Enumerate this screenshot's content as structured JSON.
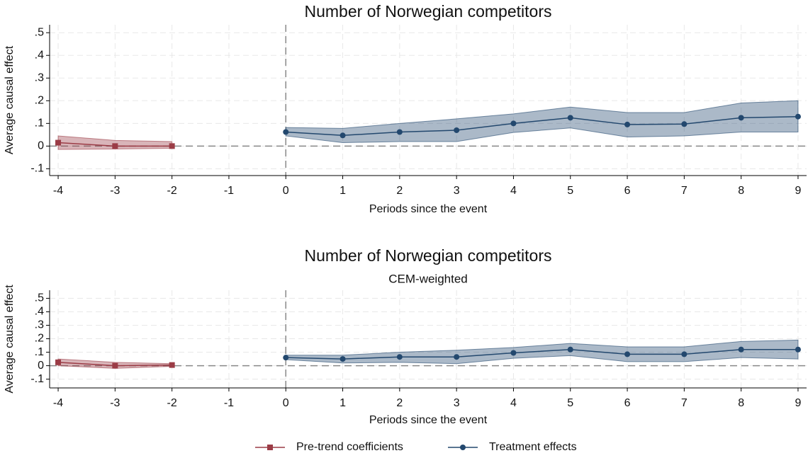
{
  "chart_data": [
    {
      "type": "line",
      "title": "Number of Norwegian competitors",
      "xlabel": "Periods since the event",
      "ylabel": "Average causal effect",
      "xlim": [
        -4.15,
        9.15
      ],
      "xticks": [
        -4,
        -3,
        -2,
        -1,
        0,
        1,
        2,
        3,
        4,
        5,
        6,
        7,
        8,
        9
      ],
      "ylim": [
        -0.13,
        0.535
      ],
      "yticks": [
        {
          "value": -0.1,
          "label": "-.1"
        },
        0,
        {
          "value": 0.1,
          "label": ".1"
        },
        {
          "value": 0.2,
          "label": ".2"
        },
        {
          "value": 0.3,
          "label": ".3"
        },
        {
          "value": 0.4,
          "label": ".4"
        },
        {
          "value": 0.5,
          "label": ".5"
        }
      ],
      "grid": true,
      "vline": 0,
      "hline": 0,
      "series": [
        {
          "name": "Pre-trend coefficients",
          "color": "#9b3c46",
          "marker": "square",
          "x": [
            -4,
            -3,
            -2
          ],
          "values": [
            0.015,
            0.0,
            0.0
          ],
          "ci_lower": [
            -0.015,
            -0.013,
            -0.01
          ],
          "ci_upper": [
            0.045,
            0.025,
            0.02
          ]
        },
        {
          "name": "Treatment effects",
          "color": "#23486e",
          "marker": "circle",
          "x": [
            0,
            1,
            2,
            3,
            4,
            5,
            6,
            7,
            8,
            9
          ],
          "values": [
            0.062,
            0.047,
            0.062,
            0.07,
            0.1,
            0.125,
            0.095,
            0.097,
            0.125,
            0.13
          ],
          "ci_lower": [
            0.045,
            0.015,
            0.02,
            0.02,
            0.06,
            0.08,
            0.04,
            0.045,
            0.062,
            0.062
          ],
          "ci_upper": [
            0.082,
            0.078,
            0.1,
            0.12,
            0.142,
            0.172,
            0.148,
            0.148,
            0.19,
            0.2
          ]
        }
      ]
    },
    {
      "type": "line",
      "title": "Number of Norwegian competitors",
      "subtitle": "CEM-weighted",
      "xlabel": "Periods since the event",
      "ylabel": "Average causal effect",
      "xlim": [
        -4.15,
        9.15
      ],
      "xticks": [
        -4,
        -3,
        -2,
        -1,
        0,
        1,
        2,
        3,
        4,
        5,
        6,
        7,
        8,
        9
      ],
      "ylim": [
        -0.165,
        0.56
      ],
      "yticks": [
        {
          "value": -0.1,
          "label": "-.1"
        },
        0,
        {
          "value": 0.1,
          "label": ".1"
        },
        {
          "value": 0.2,
          "label": ".2"
        },
        {
          "value": 0.3,
          "label": ".3"
        },
        {
          "value": 0.4,
          "label": ".4"
        },
        {
          "value": 0.5,
          "label": ".5"
        }
      ],
      "grid": true,
      "vline": 0,
      "hline": 0,
      "series": [
        {
          "color": "#9b3c46",
          "marker": "square",
          "x": [
            -4,
            -3,
            -2
          ],
          "values": [
            0.025,
            0.0,
            0.005
          ],
          "ci_lower": [
            0.0,
            -0.02,
            -0.005
          ],
          "ci_upper": [
            0.05,
            0.025,
            0.015
          ]
        },
        {
          "color": "#23486e",
          "marker": "circle",
          "x": [
            0,
            1,
            2,
            3,
            4,
            5,
            6,
            7,
            8,
            9
          ],
          "values": [
            0.06,
            0.05,
            0.065,
            0.065,
            0.095,
            0.12,
            0.085,
            0.085,
            0.12,
            0.12
          ],
          "ci_lower": [
            0.045,
            0.02,
            0.025,
            0.015,
            0.055,
            0.075,
            0.03,
            0.03,
            0.06,
            0.05
          ],
          "ci_upper": [
            0.078,
            0.078,
            0.1,
            0.115,
            0.135,
            0.165,
            0.14,
            0.14,
            0.18,
            0.19
          ]
        }
      ]
    }
  ]
}
